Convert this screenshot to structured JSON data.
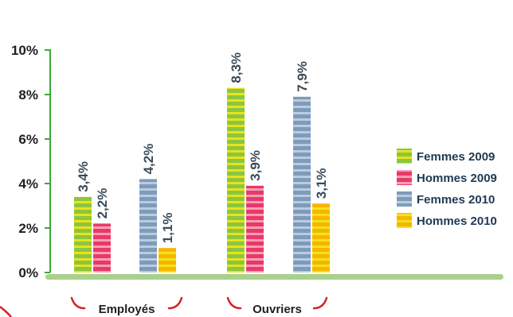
{
  "chart_data": {
    "type": "bar",
    "title": "",
    "xlabel": "",
    "ylabel": "",
    "ylim": [
      0,
      10
    ],
    "yticks": [
      "0%",
      "2%",
      "4%",
      "6%",
      "8%",
      "10%"
    ],
    "categories": [
      "Employés",
      "Ouvriers"
    ],
    "series": [
      {
        "name": "Femmes 2009",
        "values": [
          3.4,
          8.3
        ],
        "labels": [
          "3,4%",
          "8,3%"
        ],
        "color": "#8cc63f",
        "stripe": "#e8e31c"
      },
      {
        "name": "Hommes 2009",
        "values": [
          2.2,
          3.9
        ],
        "labels": [
          "2,2%",
          "3,9%"
        ],
        "color": "#e8386d",
        "stripe": "#f7a0ae"
      },
      {
        "name": "Femmes 2010",
        "values": [
          4.2,
          7.9
        ],
        "labels": [
          "4,2%",
          "7,9%"
        ],
        "color": "#7f9bb7",
        "stripe": "#b8cce4"
      },
      {
        "name": "Hommes 2010",
        "values": [
          1.1,
          3.1
        ],
        "labels": [
          "1,1%",
          "3,1%"
        ],
        "color": "#f7b500",
        "stripe": "#f2e31c"
      }
    ],
    "legend_position": "right",
    "grid": false,
    "colors": {
      "axis": "#3aaa35",
      "baseline": "#a9d18e",
      "brace": "#d2232a"
    }
  }
}
